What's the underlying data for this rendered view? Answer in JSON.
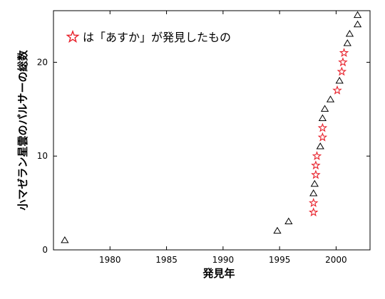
{
  "chart_data": {
    "type": "scatter",
    "title": "",
    "xlabel": "発見年",
    "ylabel": "小マゼラン星雲のパルサーの総数",
    "xlim": [
      1975,
      2003
    ],
    "ylim": [
      0,
      25.5
    ],
    "xticks": [
      1980,
      1985,
      1990,
      1995,
      2000
    ],
    "yticks": [
      0,
      10,
      20
    ],
    "grid": false,
    "legend_position": "top-left",
    "legend_text": "は「あすか」が発見したもの",
    "series": [
      {
        "name": "",
        "marker": "triangle",
        "color": "#000000",
        "points": [
          {
            "x": 1976.0,
            "y": 1
          },
          {
            "x": 1994.8,
            "y": 2
          },
          {
            "x": 1995.8,
            "y": 3
          },
          {
            "x": 1998.0,
            "y": 6
          },
          {
            "x": 1998.1,
            "y": 7
          },
          {
            "x": 1998.6,
            "y": 11
          },
          {
            "x": 1998.8,
            "y": 14
          },
          {
            "x": 1999.0,
            "y": 15
          },
          {
            "x": 1999.5,
            "y": 16
          },
          {
            "x": 2000.3,
            "y": 18
          },
          {
            "x": 2001.0,
            "y": 22
          },
          {
            "x": 2001.2,
            "y": 23
          },
          {
            "x": 2001.9,
            "y": 24
          },
          {
            "x": 2001.9,
            "y": 25
          }
        ]
      },
      {
        "name": "は「あすか」が発見したもの",
        "marker": "star",
        "color": "#e8202a",
        "points": [
          {
            "x": 1998.0,
            "y": 4
          },
          {
            "x": 1998.0,
            "y": 5
          },
          {
            "x": 1998.2,
            "y": 8
          },
          {
            "x": 1998.2,
            "y": 9
          },
          {
            "x": 1998.3,
            "y": 10
          },
          {
            "x": 1998.8,
            "y": 12
          },
          {
            "x": 1998.8,
            "y": 13
          },
          {
            "x": 2000.1,
            "y": 17
          },
          {
            "x": 2000.5,
            "y": 19
          },
          {
            "x": 2000.6,
            "y": 20
          },
          {
            "x": 2000.7,
            "y": 21
          }
        ]
      }
    ]
  }
}
